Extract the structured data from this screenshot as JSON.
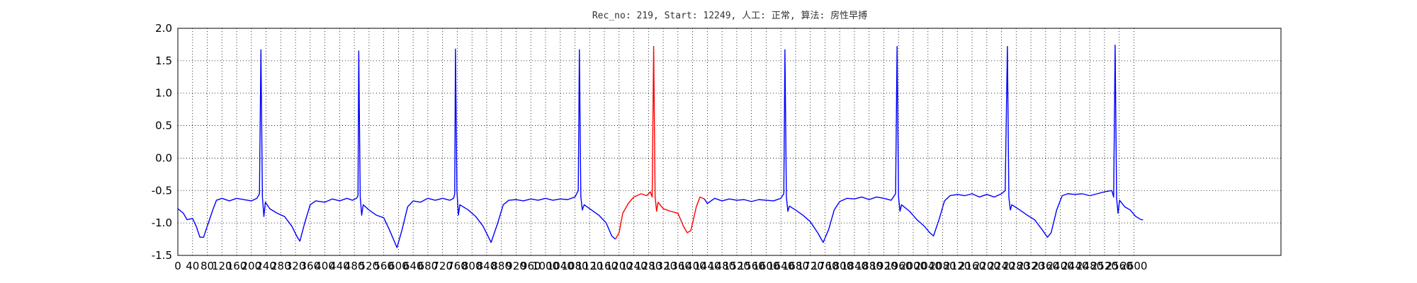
{
  "chart_data": {
    "type": "line",
    "title": "Rec_no: 219, Start: 12249, 人工: 正常, 算法: 房性早搏",
    "xlim": [
      0,
      3000
    ],
    "ylim": [
      -1.5,
      2.0
    ],
    "xticks": [
      0,
      40,
      80,
      120,
      160,
      200,
      240,
      280,
      320,
      360,
      400,
      440,
      480,
      520,
      560,
      600,
      640,
      680,
      720,
      760,
      800,
      840,
      880,
      920,
      960,
      1000,
      1040,
      1080,
      1120,
      1160,
      1200,
      1240,
      1280,
      1320,
      1360,
      1400,
      1440,
      1480,
      1520,
      1560,
      1600,
      1640,
      1680,
      1720,
      1760,
      1800,
      1840,
      1880,
      1920,
      1960,
      2000,
      2040,
      2080,
      2120,
      2160,
      2200,
      2240,
      2280,
      2320,
      2360,
      2400,
      2440,
      2480,
      2520,
      2560,
      2600
    ],
    "yticks": [
      -1.5,
      {
        "value": -1,
        "label": "-1.0"
      },
      -0.5,
      {
        "value": 0,
        "label": "0.0"
      },
      0.5,
      {
        "value": 1,
        "label": "1.0"
      },
      1.5,
      {
        "value": 2,
        "label": "2.0"
      }
    ],
    "grid": true,
    "series": [
      {
        "color": "#0000ff",
        "x": [
          0,
          15,
          25,
          40,
          50,
          60,
          70,
          80,
          95,
          105,
          120,
          140,
          160,
          180,
          200,
          215,
          222,
          226,
          230,
          234,
          238,
          250,
          270,
          290,
          310,
          325,
          332,
          345,
          360,
          375,
          400,
          420,
          440,
          460,
          475,
          486,
          490,
          492,
          496,
          500,
          504,
          520,
          540,
          560,
          575,
          590,
          596,
          610,
          625,
          640,
          660,
          680,
          700,
          720,
          740,
          750,
          753,
          755,
          759,
          763,
          767,
          790,
          810,
          830,
          845,
          852,
          870,
          885,
          900,
          920,
          940,
          960,
          980,
          1000,
          1020,
          1040,
          1060,
          1080,
          1089,
          1092,
          1096,
          1100,
          1105,
          1125,
          1145,
          1165,
          1180,
          1190
        ],
        "values": [
          -0.78,
          -0.85,
          -0.95,
          -0.93,
          -1.05,
          -1.22,
          -1.22,
          -1.05,
          -0.8,
          -0.65,
          -0.62,
          -0.66,
          -0.62,
          -0.64,
          -0.66,
          -0.62,
          -0.55,
          1.67,
          -0.6,
          -0.9,
          -0.68,
          -0.78,
          -0.85,
          -0.9,
          -1.05,
          -1.22,
          -1.28,
          -1.0,
          -0.72,
          -0.66,
          -0.68,
          -0.63,
          -0.66,
          -0.62,
          -0.65,
          -0.62,
          -0.58,
          1.65,
          -0.6,
          -0.88,
          -0.72,
          -0.8,
          -0.88,
          -0.92,
          -1.1,
          -1.3,
          -1.38,
          -1.1,
          -0.75,
          -0.66,
          -0.68,
          -0.62,
          -0.65,
          -0.62,
          -0.65,
          -0.62,
          -0.55,
          1.68,
          -0.5,
          -0.88,
          -0.72,
          -0.8,
          -0.9,
          -1.05,
          -1.22,
          -1.3,
          -1.0,
          -0.72,
          -0.65,
          -0.64,
          -0.66,
          -0.63,
          -0.65,
          -0.62,
          -0.65,
          -0.63,
          -0.64,
          -0.6,
          -0.5,
          1.67,
          -0.6,
          -0.8,
          -0.72,
          -0.8,
          -0.88,
          -1.0,
          -1.2,
          -1.25
        ]
      },
      {
        "color": "#ff0000",
        "x": [
          1190,
          1200,
          1210,
          1225,
          1240,
          1260,
          1275,
          1285,
          1290,
          1294,
          1298,
          1302,
          1306,
          1320,
          1340,
          1360,
          1375,
          1385,
          1395,
          1410,
          1420,
          1432
        ],
        "values": [
          -1.25,
          -1.15,
          -0.85,
          -0.7,
          -0.6,
          -0.55,
          -0.58,
          -0.52,
          -0.6,
          1.72,
          -0.6,
          -0.82,
          -0.68,
          -0.78,
          -0.82,
          -0.85,
          -1.05,
          -1.15,
          -1.12,
          -0.75,
          -0.6,
          -0.63
        ]
      },
      {
        "color": "#0000ff",
        "x": [
          1432,
          1440,
          1460,
          1480,
          1500,
          1520,
          1540,
          1560,
          1580,
          1600,
          1620,
          1640,
          1648,
          1651,
          1655,
          1659,
          1663,
          1680,
          1700,
          1720,
          1740,
          1755,
          1770,
          1785,
          1800,
          1820,
          1840,
          1860,
          1880,
          1900,
          1920,
          1940,
          1952,
          1956,
          1960,
          1964,
          1968,
          1990,
          2010,
          2030,
          2045,
          2055,
          2070,
          2085,
          2100,
          2120,
          2140,
          2160,
          2180,
          2200,
          2220,
          2240,
          2250,
          2256,
          2260,
          2264,
          2268,
          2290,
          2310,
          2330,
          2350,
          2365,
          2375,
          2390,
          2405,
          2420,
          2440,
          2460,
          2480,
          2500,
          2520,
          2540,
          2545,
          2549,
          2553,
          2557,
          2561,
          2575,
          2590,
          2605,
          2620,
          2625
        ],
        "values": [
          -0.63,
          -0.7,
          -0.62,
          -0.66,
          -0.63,
          -0.65,
          -0.64,
          -0.67,
          -0.64,
          -0.65,
          -0.66,
          -0.62,
          -0.55,
          1.67,
          -0.6,
          -0.82,
          -0.74,
          -0.8,
          -0.88,
          -0.98,
          -1.15,
          -1.3,
          -1.1,
          -0.8,
          -0.67,
          -0.62,
          -0.63,
          -0.6,
          -0.64,
          -0.6,
          -0.62,
          -0.65,
          -0.55,
          1.72,
          -0.6,
          -0.82,
          -0.72,
          -0.82,
          -0.95,
          -1.05,
          -1.15,
          -1.2,
          -0.95,
          -0.66,
          -0.58,
          -0.56,
          -0.58,
          -0.55,
          -0.6,
          -0.56,
          -0.6,
          -0.55,
          -0.5,
          1.72,
          -0.6,
          -0.8,
          -0.72,
          -0.8,
          -0.88,
          -0.95,
          -1.1,
          -1.22,
          -1.15,
          -0.8,
          -0.58,
          -0.55,
          -0.56,
          -0.55,
          -0.58,
          -0.55,
          -0.52,
          -0.5,
          -0.6,
          1.74,
          -0.62,
          -0.85,
          -0.65,
          -0.75,
          -0.8,
          -0.9,
          -0.95,
          -0.95
        ]
      }
    ]
  }
}
